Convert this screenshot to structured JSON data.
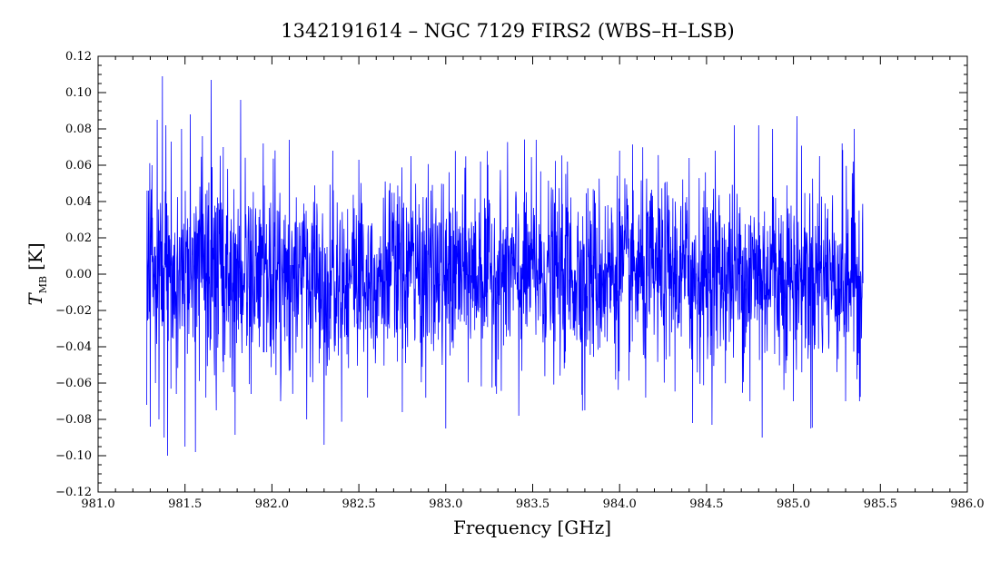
{
  "chart_data": {
    "type": "line",
    "title": "1342191614 – NGC 7129 FIRS2 (WBS–H–LSB)",
    "xlabel": "Frequency [GHz]",
    "ylabel": {
      "symbol": "T",
      "subscript": "MB",
      "unit": "[K]"
    },
    "xlim": [
      981.0,
      986.0
    ],
    "ylim": [
      -0.12,
      0.12
    ],
    "xticks": [
      981.0,
      981.5,
      982.0,
      982.5,
      983.0,
      983.5,
      984.0,
      984.5,
      985.0,
      985.5,
      986.0
    ],
    "xtick_labels": [
      "981.0",
      "981.5",
      "982.0",
      "982.5",
      "983.0",
      "983.5",
      "984.0",
      "984.5",
      "985.0",
      "985.5",
      "986.0"
    ],
    "yticks": [
      -0.12,
      -0.1,
      -0.08,
      -0.06,
      -0.04,
      -0.02,
      0.0,
      0.02,
      0.04,
      0.06,
      0.08,
      0.1,
      0.12
    ],
    "ytick_labels": [
      "−0.12",
      "−0.10",
      "−0.08",
      "−0.06",
      "−0.04",
      "−0.02",
      "0.00",
      "0.02",
      "0.04",
      "0.06",
      "0.08",
      "0.10",
      "0.12"
    ],
    "grid": false,
    "legend": "none",
    "series": [
      {
        "color": "#0000ff",
        "x_range": [
          981.28,
          985.4
        ],
        "noise_rms": 0.025,
        "points": [
          [
            981.28,
            -0.072
          ],
          [
            981.29,
            0.046
          ],
          [
            981.3,
            -0.084
          ],
          [
            981.31,
            0.06
          ],
          [
            981.33,
            -0.06
          ],
          [
            981.34,
            0.085
          ],
          [
            981.35,
            -0.08
          ],
          [
            981.37,
            0.109
          ],
          [
            981.38,
            -0.09
          ],
          [
            981.39,
            0.082
          ],
          [
            981.4,
            -0.1
          ],
          [
            981.42,
            0.073
          ],
          [
            981.45,
            -0.066
          ],
          [
            981.48,
            0.08
          ],
          [
            981.5,
            -0.095
          ],
          [
            981.53,
            0.088
          ],
          [
            981.56,
            -0.098
          ],
          [
            981.6,
            0.076
          ],
          [
            981.62,
            -0.068
          ],
          [
            981.65,
            0.107
          ],
          [
            981.68,
            -0.075
          ],
          [
            981.72,
            0.07
          ],
          [
            981.78,
            -0.065
          ],
          [
            981.82,
            0.096
          ],
          [
            981.88,
            -0.066
          ],
          [
            981.95,
            0.072
          ],
          [
            982.05,
            -0.07
          ],
          [
            982.1,
            0.074
          ],
          [
            982.2,
            -0.08
          ],
          [
            982.3,
            -0.094
          ],
          [
            982.35,
            0.068
          ],
          [
            982.5,
            0.063
          ],
          [
            982.55,
            -0.068
          ],
          [
            982.75,
            -0.076
          ],
          [
            982.8,
            0.065
          ],
          [
            983.0,
            -0.085
          ],
          [
            983.2,
            0.062
          ],
          [
            983.42,
            -0.078
          ],
          [
            983.52,
            0.074
          ],
          [
            983.7,
            0.062
          ],
          [
            983.8,
            -0.075
          ],
          [
            984.0,
            0.068
          ],
          [
            984.15,
            -0.068
          ],
          [
            984.4,
            0.064
          ],
          [
            984.42,
            -0.082
          ],
          [
            984.55,
            0.068
          ],
          [
            984.66,
            0.082
          ],
          [
            984.75,
            -0.07
          ],
          [
            984.8,
            0.082
          ],
          [
            984.82,
            -0.09
          ],
          [
            984.88,
            0.08
          ],
          [
            985.0,
            -0.07
          ],
          [
            985.02,
            0.087
          ],
          [
            985.1,
            -0.085
          ],
          [
            985.15,
            0.065
          ],
          [
            985.28,
            0.072
          ],
          [
            985.3,
            -0.07
          ],
          [
            985.35,
            0.08
          ],
          [
            985.37,
            -0.05
          ],
          [
            985.38,
            -0.07
          ],
          [
            985.4,
            -0.005
          ]
        ]
      }
    ]
  }
}
